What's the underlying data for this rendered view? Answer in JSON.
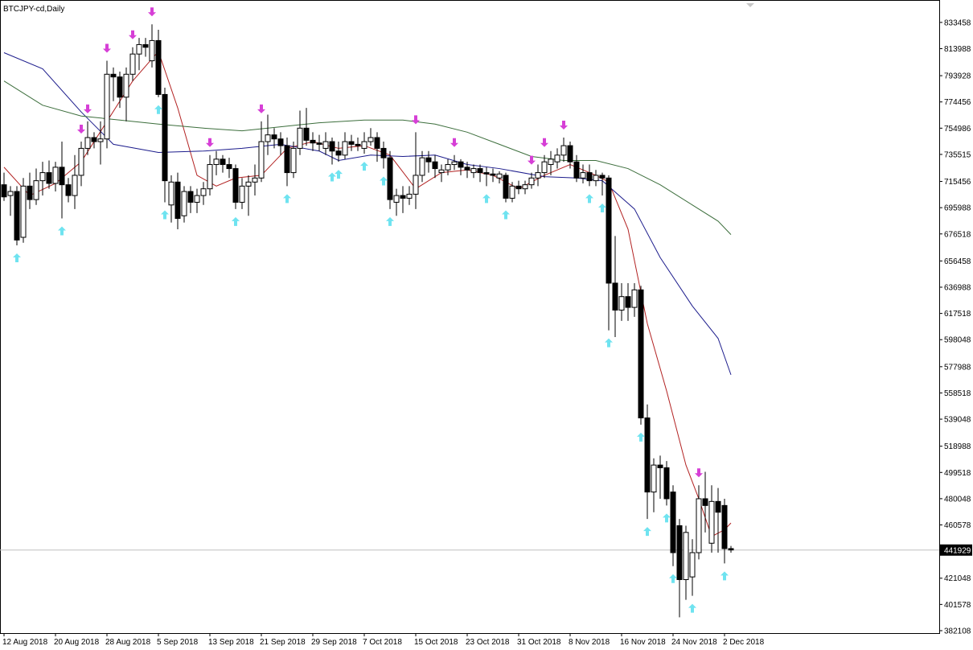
{
  "chart_data": {
    "type": "candlestick",
    "title": "BTCJPY-cd,Daily",
    "open": [
      713000,
      705000,
      708000,
      674000,
      712000,
      702000,
      716000,
      722000,
      714000,
      726000,
      713000,
      705000,
      720000,
      740000,
      748000,
      745000,
      747000,
      795000,
      793000,
      778000,
      795000,
      810000,
      817000,
      805000,
      820000,
      780000,
      698000,
      715000,
      690000,
      708000,
      700000,
      705000,
      710000,
      728000,
      732000,
      728000,
      725000,
      700000,
      712000,
      715000,
      718000,
      745000,
      750000,
      747000,
      742000,
      722000,
      740000,
      755000,
      746000,
      744000,
      740000,
      745000,
      738000,
      735000,
      745000,
      743000,
      740000,
      745000,
      748000,
      740000,
      733000,
      700000,
      705000,
      703000,
      706000,
      720000,
      733000,
      730000,
      722000,
      724000,
      728000,
      730000,
      726000,
      722000,
      725000,
      722000,
      721000,
      718000,
      720000,
      703000,
      712000,
      710000,
      713000,
      718000,
      722000,
      728000,
      730000,
      735000,
      742000,
      730000,
      718000,
      722000,
      716000,
      720000,
      718000,
      640000,
      620000,
      630000,
      622000,
      635000,
      540000,
      485000,
      505000,
      503000,
      485000,
      460000,
      420000,
      422000,
      440000,
      480000,
      447000,
      478000,
      475000,
      443000
    ],
    "high": [
      722000,
      712000,
      712000,
      718000,
      722000,
      725000,
      730000,
      731000,
      730000,
      745000,
      718000,
      735000,
      745000,
      760000,
      752000,
      760000,
      805000,
      800000,
      797000,
      800000,
      815000,
      822000,
      822000,
      832000,
      828000,
      785000,
      720000,
      722000,
      712000,
      712000,
      710000,
      715000,
      735000,
      738000,
      735000,
      733000,
      728000,
      718000,
      720000,
      728000,
      760000,
      765000,
      755000,
      752000,
      748000,
      745000,
      768000,
      770000,
      752000,
      750000,
      752000,
      748000,
      745000,
      752000,
      750000,
      748000,
      752000,
      755000,
      752000,
      745000,
      738000,
      710000,
      712000,
      712000,
      752000,
      738000,
      738000,
      735000,
      728000,
      732000,
      735000,
      732000,
      730000,
      728000,
      728000,
      726000,
      725000,
      723000,
      722000,
      715000,
      716000,
      716000,
      722000,
      728000,
      735000,
      738000,
      740000,
      748000,
      745000,
      735000,
      728000,
      728000,
      724000,
      722000,
      720000,
      675000,
      640000,
      640000,
      640000,
      638000,
      550000,
      510000,
      512000,
      508000,
      490000,
      465000,
      460000,
      450000,
      490000,
      500000,
      490000,
      488000,
      480000,
      445000
    ],
    "low": [
      701000,
      690000,
      668000,
      670000,
      695000,
      698000,
      705000,
      710000,
      708000,
      688000,
      700000,
      695000,
      712000,
      735000,
      740000,
      728000,
      740000,
      775000,
      770000,
      760000,
      790000,
      798000,
      808000,
      800000,
      778000,
      700000,
      685000,
      680000,
      685000,
      692000,
      692000,
      698000,
      705000,
      720000,
      722000,
      718000,
      695000,
      695000,
      690000,
      705000,
      715000,
      735000,
      740000,
      735000,
      712000,
      718000,
      735000,
      742000,
      738000,
      738000,
      735000,
      728000,
      730000,
      732000,
      738000,
      738000,
      736000,
      742000,
      730000,
      725000,
      695000,
      690000,
      692000,
      698000,
      695000,
      715000,
      722000,
      718000,
      715000,
      720000,
      724000,
      720000,
      718000,
      718000,
      715000,
      712000,
      715000,
      714000,
      700000,
      700000,
      706000,
      706000,
      710000,
      712000,
      718000,
      720000,
      725000,
      730000,
      725000,
      715000,
      714000,
      712000,
      712000,
      705000,
      605000,
      600000,
      612000,
      612000,
      615000,
      535000,
      465000,
      470000,
      480000,
      475000,
      430000,
      392000,
      405000,
      408000,
      435000,
      455000,
      440000,
      440000,
      432000,
      440000
    ],
    "close": [
      704000,
      708000,
      672000,
      712000,
      702000,
      716000,
      722000,
      714000,
      726000,
      713000,
      705000,
      720000,
      740000,
      748000,
      745000,
      747000,
      795000,
      793000,
      778000,
      795000,
      810000,
      817000,
      815000,
      820000,
      780000,
      716000,
      715000,
      688000,
      708000,
      700000,
      705000,
      710000,
      728000,
      732000,
      728000,
      725000,
      700000,
      712000,
      715000,
      718000,
      745000,
      750000,
      747000,
      742000,
      722000,
      740000,
      755000,
      746000,
      744000,
      743000,
      745000,
      738000,
      735000,
      745000,
      743000,
      742000,
      745000,
      748000,
      740000,
      733000,
      702000,
      705000,
      703000,
      706000,
      720000,
      733000,
      730000,
      725000,
      724000,
      728000,
      730000,
      726000,
      724000,
      725000,
      722000,
      721000,
      720000,
      721000,
      703000,
      712000,
      710000,
      713000,
      718000,
      722000,
      730000,
      732000,
      735000,
      742000,
      730000,
      718000,
      722000,
      716000,
      720000,
      718000,
      640000,
      620000,
      630000,
      622000,
      635000,
      540000,
      485000,
      505000,
      503000,
      480000,
      440000,
      420000,
      455000,
      440000,
      480000,
      475000,
      478000,
      470000,
      443000,
      442000
    ],
    "up_signals": [
      2,
      9,
      24,
      25,
      36,
      44,
      51,
      52,
      56,
      59,
      60,
      75,
      78,
      91,
      93,
      94,
      99,
      100,
      103,
      104,
      107,
      112
    ],
    "down_signals": [
      12,
      13,
      16,
      20,
      23,
      32,
      40,
      64,
      70,
      82,
      84,
      87,
      108
    ],
    "ma_lines": [
      {
        "color": "#b22222",
        "x": [
          0,
          4,
          8,
          12,
          16,
          20,
          24,
          27,
          30,
          33,
          36,
          40,
          44,
          48,
          52,
          56,
          60,
          64,
          68,
          72,
          76,
          80,
          84,
          88,
          92,
          94,
          97,
          100,
          103,
          106,
          108,
          110,
          112,
          113
        ],
        "values": [
          726000,
          705000,
          714000,
          730000,
          760000,
          790000,
          812000,
          770000,
          720000,
          712000,
          718000,
          720000,
          740000,
          745000,
          740000,
          742000,
          735000,
          710000,
          722000,
          724000,
          720000,
          710000,
          720000,
          728000,
          720000,
          715000,
          680000,
          610000,
          560000,
          505000,
          480000,
          452000,
          457000,
          462000
        ]
      },
      {
        "color": "#1c1c8c",
        "x": [
          0,
          6,
          12,
          17,
          24,
          31,
          37,
          43,
          49,
          52,
          57,
          62,
          67,
          72,
          77,
          84,
          89,
          93,
          98,
          102,
          107,
          111,
          113
        ],
        "values": [
          811000,
          799000,
          767000,
          743000,
          737000,
          738000,
          740000,
          743000,
          738000,
          731000,
          735000,
          734000,
          735000,
          728000,
          725000,
          719000,
          718000,
          716000,
          695000,
          659000,
          623000,
          599000,
          572000
        ]
      },
      {
        "color": "#3c6e3c",
        "x": [
          0,
          6,
          12,
          18,
          24,
          31,
          37,
          43,
          49,
          56,
          62,
          67,
          72,
          77,
          82,
          87,
          92,
          97,
          102,
          107,
          111,
          113
        ],
        "values": [
          790000,
          772000,
          764000,
          761000,
          758000,
          755000,
          753000,
          756000,
          759000,
          761000,
          761000,
          758000,
          752000,
          743000,
          734000,
          731000,
          731000,
          725000,
          713000,
          698000,
          686000,
          676000
        ]
      }
    ],
    "current_price": 441929,
    "xlim": [
      -0.625,
      145.375
    ],
    "ylim": [
      380300,
      848900
    ],
    "yticks": [
      833458,
      813988,
      793928,
      774456,
      754986,
      735515,
      715456,
      695988,
      676518,
      656458,
      636988,
      617518,
      598048,
      577988,
      558518,
      539048,
      518988,
      499518,
      480048,
      460578,
      421048,
      401578,
      382108
    ],
    "xticks": [
      {
        "value": 0,
        "label": "12 Aug 2018"
      },
      {
        "value": 8,
        "label": "20 Aug 2018"
      },
      {
        "value": 16,
        "label": "28 Aug 2018"
      },
      {
        "value": 24,
        "label": "5 Sep 2018"
      },
      {
        "value": 32,
        "label": "13 Sep 2018"
      },
      {
        "value": 40,
        "label": "21 Sep 2018"
      },
      {
        "value": 48,
        "label": "29 Sep 2018"
      },
      {
        "value": 56,
        "label": "7 Oct 2018"
      },
      {
        "value": 64,
        "label": "15 Oct 2018"
      },
      {
        "value": 72,
        "label": "23 Oct 2018"
      },
      {
        "value": 80,
        "label": "31 Oct 2018"
      },
      {
        "value": 88,
        "label": "8 Nov 2018"
      },
      {
        "value": 96,
        "label": "16 Nov 2018"
      },
      {
        "value": 104,
        "label": "24 Nov 2018"
      },
      {
        "value": 112,
        "label": "2 Dec 2018"
      }
    ],
    "up_color": "#ffffff",
    "down_color": "#000000",
    "up_signal_color": "#6fe3f0",
    "down_signal_color": "#d63fd6",
    "current_price_color": "#c0c0c0"
  }
}
